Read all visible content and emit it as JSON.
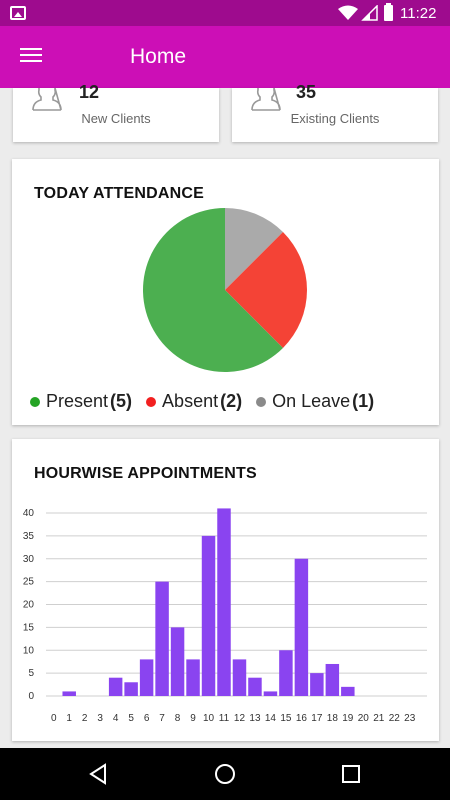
{
  "status_bar": {
    "time": "11:22",
    "icons": [
      "image-icon",
      "wifi-icon",
      "signal-icon",
      "battery-icon"
    ]
  },
  "app_bar": {
    "title": "Home",
    "menu_icon": "menu-icon"
  },
  "stats": [
    {
      "value": "12",
      "label": "New Clients"
    },
    {
      "value": "35",
      "label": "Existing Clients"
    }
  ],
  "attendance": {
    "title": "TODAY ATTENDANCE",
    "legend": [
      {
        "label": "Present",
        "count": "(5)",
        "color": "#25a425"
      },
      {
        "label": "Absent",
        "count": "(2)",
        "color": "#f22020"
      },
      {
        "label": "On Leave",
        "count": "(1)",
        "color": "#8a8a8a"
      }
    ],
    "chart_data": {
      "type": "pie",
      "slices": [
        {
          "name": "Present",
          "value": 5,
          "color": "#4caf50"
        },
        {
          "name": "Absent",
          "value": 2,
          "color": "#f44336"
        },
        {
          "name": "On Leave",
          "value": 1,
          "color": "#aaaaaa"
        }
      ]
    }
  },
  "appointments": {
    "title": "HOURWISE APPOINTMENTS",
    "chart_data": {
      "type": "bar",
      "categories": [
        "0",
        "1",
        "2",
        "3",
        "4",
        "5",
        "6",
        "7",
        "8",
        "9",
        "10",
        "11",
        "12",
        "13",
        "14",
        "15",
        "16",
        "17",
        "18",
        "19",
        "20",
        "21",
        "22",
        "23"
      ],
      "values": [
        0,
        1,
        0,
        0,
        4,
        3,
        8,
        25,
        15,
        8,
        35,
        41,
        8,
        4,
        1,
        10,
        30,
        5,
        7,
        2,
        0,
        0,
        0,
        0
      ],
      "yticks": [
        "0",
        "5",
        "10",
        "15",
        "20",
        "25",
        "30",
        "35",
        "40"
      ],
      "ylim": [
        0,
        40
      ],
      "grid": true,
      "bar_color": "#8a44f0"
    }
  },
  "nav_bar": {
    "icons": [
      "back-icon",
      "home-icon",
      "recents-icon"
    ]
  }
}
